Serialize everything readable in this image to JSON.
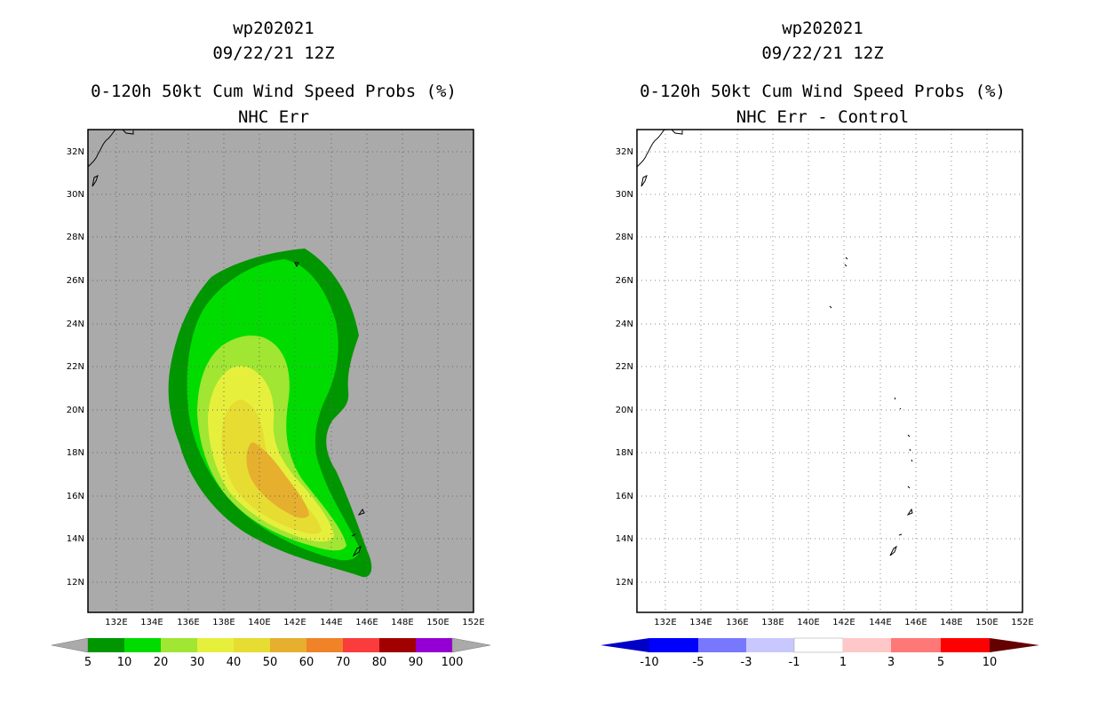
{
  "left_panel": {
    "title_line1": "wp202021",
    "title_line2": "09/22/21 12Z",
    "title_line3": "0-120h 50kt Cum Wind Speed Probs (%)",
    "title_line4": "NHC Err",
    "background_color": "#aaaaaa",
    "colorbar_labels": [
      "5",
      "10",
      "20",
      "30",
      "40",
      "50",
      "60",
      "70",
      "80",
      "90",
      "100"
    ],
    "colorbar_colors": [
      "#009600",
      "#00dc00",
      "#a0e632",
      "#e6f03c",
      "#e6dc32",
      "#e6af2d",
      "#f08228",
      "#fa3c3c",
      "#a00000",
      "#9400d3"
    ]
  },
  "right_panel": {
    "title_line1": "wp202021",
    "title_line2": "09/22/21 12Z",
    "title_line3": "0-120h 50kt Cum Wind Speed Probs (%)",
    "title_line4": "NHC Err - Control",
    "background_color": "#ffffff",
    "colorbar_labels": [
      "-10",
      "-5",
      "-3",
      "-1",
      "1",
      "3",
      "5",
      "10"
    ],
    "colorbar_colors": [
      "#0000c8",
      "#0000ff",
      "#7878ff",
      "#c8c8ff",
      "#ffffff",
      "#ffc8c8",
      "#ff7878",
      "#ff0000",
      "#b40000",
      "#640000"
    ]
  },
  "axes": {
    "lon_labels": [
      "132E",
      "134E",
      "136E",
      "138E",
      "140E",
      "142E",
      "144E",
      "146E",
      "148E",
      "150E",
      "152E"
    ],
    "lat_labels": [
      "32N",
      "30N",
      "28N",
      "26N",
      "24N",
      "22N",
      "20N",
      "18N",
      "16N",
      "14N",
      "12N"
    ]
  }
}
